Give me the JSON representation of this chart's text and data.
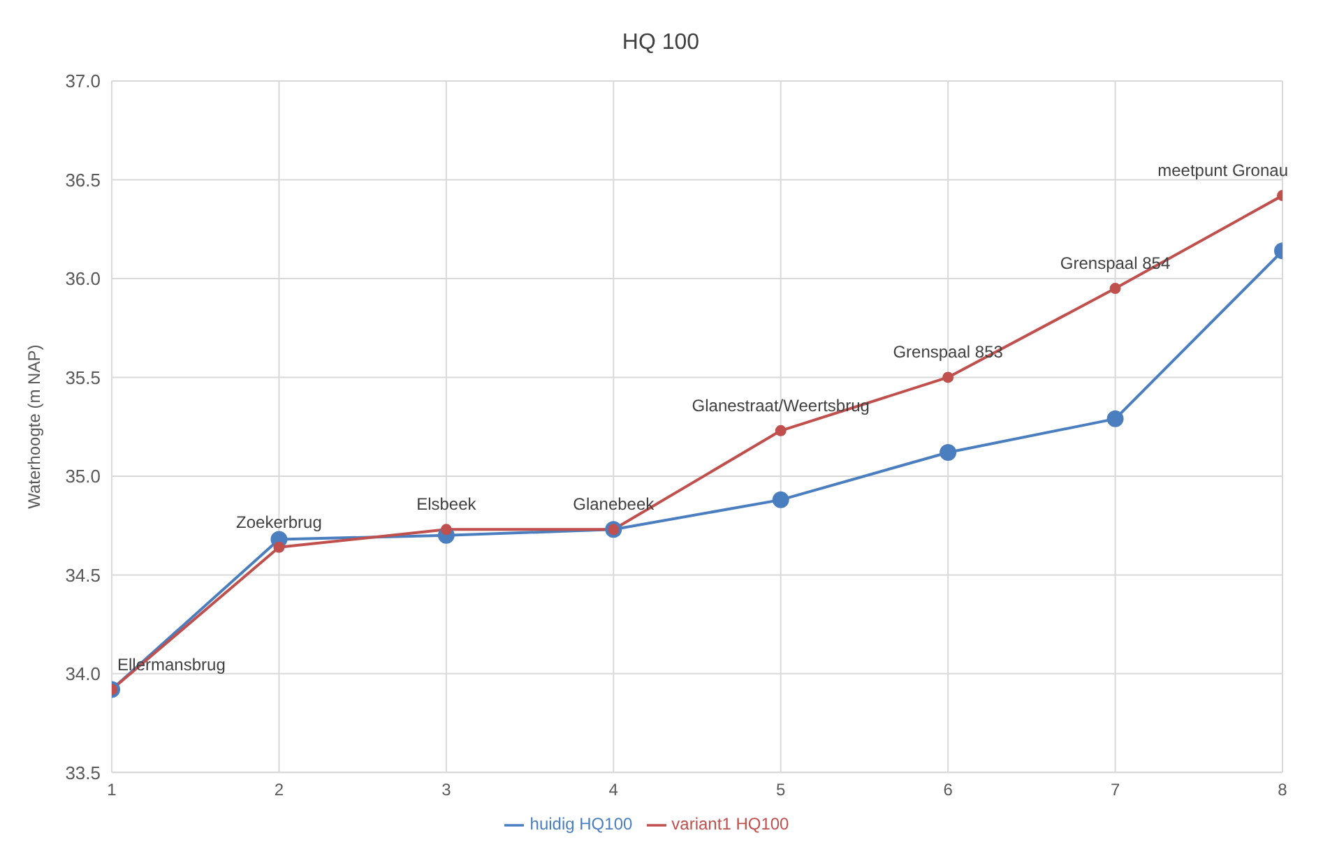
{
  "chart_data": {
    "type": "line",
    "title": "HQ 100",
    "ylabel": "Waterhoogte (m NAP)",
    "x": [
      1,
      2,
      3,
      4,
      5,
      6,
      7,
      8
    ],
    "xlim": [
      1,
      8
    ],
    "xticks": [
      1,
      2,
      3,
      4,
      5,
      6,
      7,
      8
    ],
    "ylim": [
      33.5,
      37.0
    ],
    "yticks": [
      {
        "value": 33.5,
        "label": "33.5"
      },
      {
        "value": 34.0,
        "label": "34.0"
      },
      {
        "value": 34.5,
        "label": "34.5"
      },
      {
        "value": 35.0,
        "label": "35.0"
      },
      {
        "value": 35.5,
        "label": "35.5"
      },
      {
        "value": 36.0,
        "label": "36.0"
      },
      {
        "value": 36.5,
        "label": "36.5"
      },
      {
        "value": 37.0,
        "label": "37.0"
      }
    ],
    "series": [
      {
        "name": "huidig HQ100",
        "color": "#4a7ebf",
        "values": [
          33.92,
          34.68,
          34.7,
          34.73,
          34.88,
          35.12,
          35.29,
          36.14
        ]
      },
      {
        "name": "variant1 HQ100",
        "color": "#c0504d",
        "values": [
          33.92,
          34.64,
          34.73,
          34.73,
          35.23,
          35.5,
          35.95,
          36.42
        ]
      }
    ],
    "annotations": [
      {
        "text": "Ellermansbrug",
        "x": 1,
        "y": 33.92
      },
      {
        "text": "Zoekerbrug",
        "x": 2,
        "y": 34.64
      },
      {
        "text": "Elsbeek",
        "x": 3,
        "y": 34.73
      },
      {
        "text": "Glanebeek",
        "x": 4,
        "y": 34.73
      },
      {
        "text": "Glanestraat/Weertsbrug",
        "x": 5,
        "y": 35.23
      },
      {
        "text": "Grenspaal 853",
        "x": 6,
        "y": 35.5
      },
      {
        "text": "Grenspaal 854",
        "x": 7,
        "y": 35.95
      },
      {
        "text": "meetpunt Gronau",
        "x": 8,
        "y": 36.42
      }
    ],
    "grid": true,
    "legend": "bottom",
    "marker": "circle",
    "line_style": "solid"
  }
}
